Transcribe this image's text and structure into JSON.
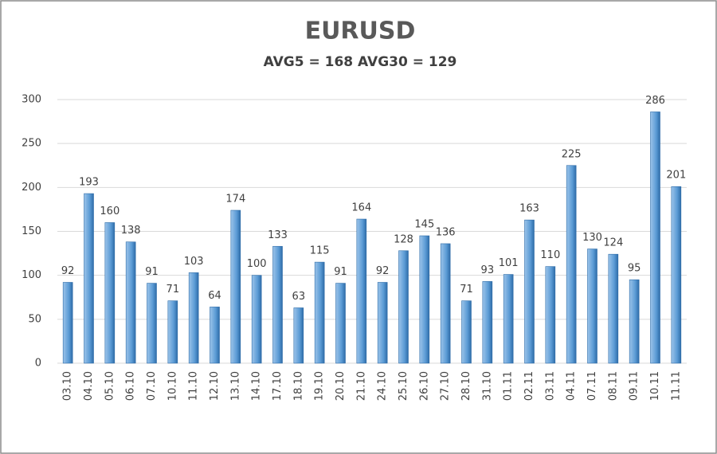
{
  "chart_data": {
    "type": "bar",
    "title": "EURUSD",
    "subtitle": "AVG5 = 168 AVG30 = 129",
    "categories": [
      "03.10",
      "04.10",
      "05.10",
      "06.10",
      "07.10",
      "10.10",
      "11.10",
      "12.10",
      "13.10",
      "14.10",
      "17.10",
      "18.10",
      "19.10",
      "20.10",
      "21.10",
      "24.10",
      "25.10",
      "26.10",
      "27.10",
      "28.10",
      "31.10",
      "01.11",
      "02.11",
      "03.11",
      "04.11",
      "07.11",
      "08.11",
      "09.11",
      "10.11",
      "11.11"
    ],
    "values": [
      92,
      193,
      160,
      138,
      91,
      71,
      103,
      64,
      174,
      100,
      133,
      63,
      115,
      91,
      164,
      92,
      128,
      145,
      136,
      71,
      93,
      101,
      163,
      110,
      225,
      130,
      124,
      95,
      286,
      201
    ],
    "color": "#5b9bd5",
    "ylim": [
      0,
      300
    ],
    "yticks": [
      0,
      50,
      100,
      150,
      200,
      250,
      300
    ],
    "grid": true
  }
}
